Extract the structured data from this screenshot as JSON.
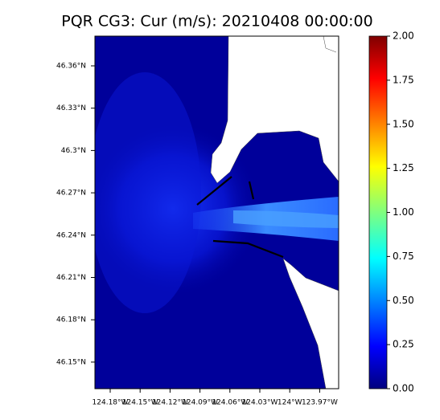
{
  "title": "PQR CG3: Cur (m/s): 20210408 00:00:00",
  "map": {
    "lat_ticks": [
      "46.36°N",
      "46.33°N",
      "46.3°N",
      "46.27°N",
      "46.24°N",
      "46.21°N",
      "46.18°N",
      "46.15°N"
    ],
    "lon_ticks": [
      "124.18°W",
      "124.15°W",
      "124.12°W",
      "124.09°W",
      "124.06°W",
      "124.03°W",
      "124°W",
      "123.97°W"
    ]
  },
  "colorbar": {
    "lim": [
      0,
      2
    ],
    "ticks": [
      {
        "value": 0,
        "label": "0.00"
      },
      {
        "value": 0.25,
        "label": "0.25"
      },
      {
        "value": 0.5,
        "label": "0.50"
      },
      {
        "value": 0.75,
        "label": "0.75"
      },
      {
        "value": 1,
        "label": "1.00"
      },
      {
        "value": 1.25,
        "label": "1.25"
      },
      {
        "value": 1.5,
        "label": "1.50"
      },
      {
        "value": 1.75,
        "label": "1.75"
      },
      {
        "value": 2,
        "label": "2.00"
      }
    ]
  }
}
